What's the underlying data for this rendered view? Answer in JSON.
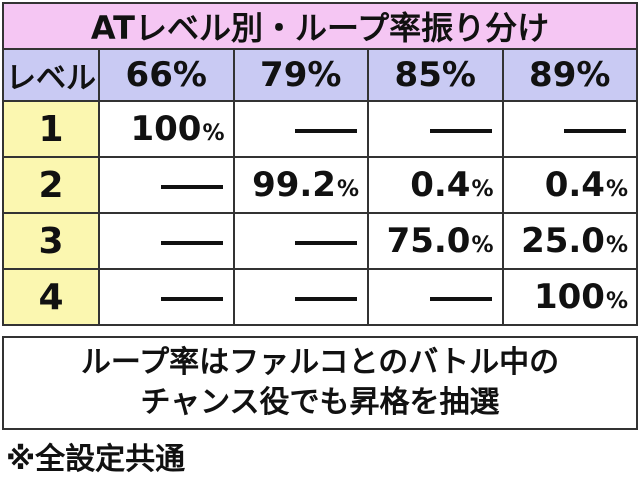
{
  "title": "ATレベル別・ループ率振り分け",
  "table": {
    "corner": "レベル",
    "columns": [
      "66%",
      "79%",
      "85%",
      "89%"
    ],
    "percent_sign": "%",
    "rows": [
      {
        "level": "1",
        "cells": [
          "100",
          "—",
          "—",
          "—"
        ]
      },
      {
        "level": "2",
        "cells": [
          "—",
          "99.2",
          "0.4",
          "0.4"
        ]
      },
      {
        "level": "3",
        "cells": [
          "—",
          "—",
          "75.0",
          "25.0"
        ]
      },
      {
        "level": "4",
        "cells": [
          "—",
          "—",
          "—",
          "100"
        ]
      }
    ]
  },
  "note": {
    "line1": "ループ率はファルコとのバトル中の",
    "line2": "チャンス役でも昇格を抽選"
  },
  "footnote": "※全設定共通",
  "colors": {
    "title_bg": "#f5c6f3",
    "header_bg": "#c9caf3",
    "level_bg": "#fbf7b0"
  }
}
